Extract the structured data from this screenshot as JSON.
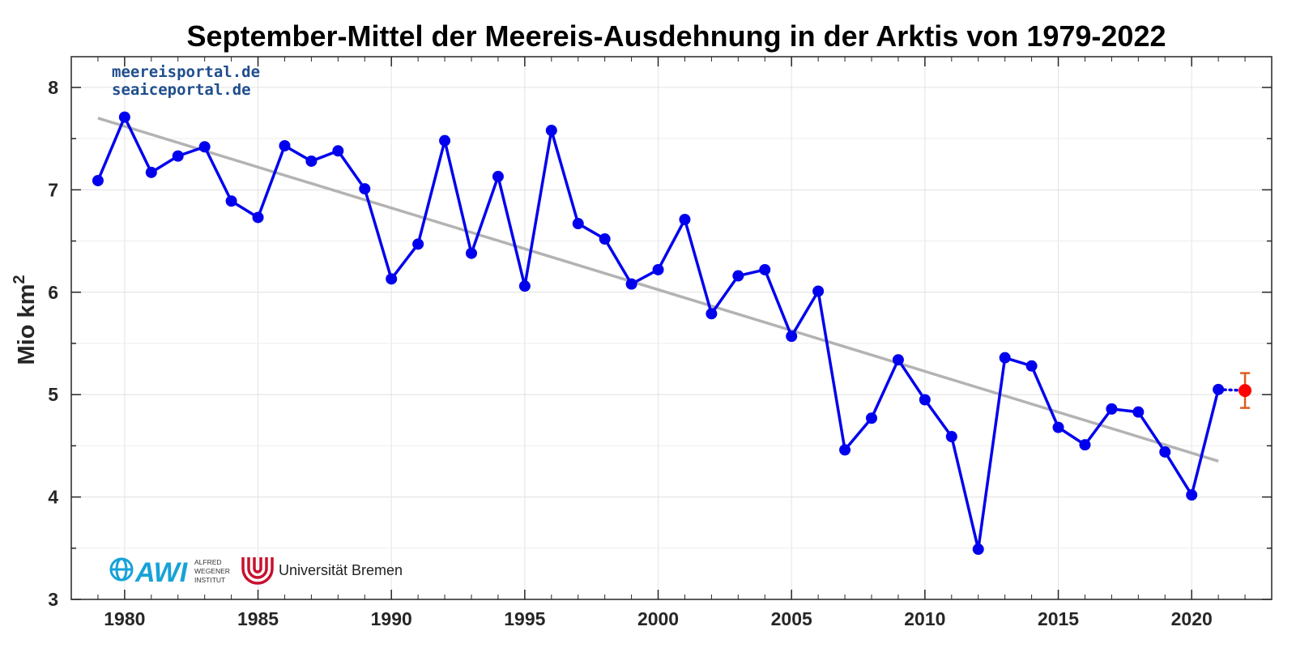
{
  "chart_data": {
    "type": "line",
    "title": "September-Mittel der Meereis-Ausdehnung in der Arktis von 1979-2022",
    "ylabel_main": "Mio km",
    "ylabel_sup": "2",
    "xlim": [
      1978,
      2023
    ],
    "ylim": [
      3,
      8.3
    ],
    "x_ticks": [
      1980,
      1985,
      1990,
      1995,
      2000,
      2005,
      2010,
      2015,
      2020
    ],
    "y_ticks": [
      3,
      4,
      5,
      6,
      7,
      8
    ],
    "grid": true,
    "series": [
      {
        "color": "#0000ee",
        "marker": "circle",
        "x": [
          1979,
          1980,
          1981,
          1982,
          1983,
          1984,
          1985,
          1986,
          1987,
          1988,
          1989,
          1990,
          1991,
          1992,
          1993,
          1994,
          1995,
          1996,
          1997,
          1998,
          1999,
          2000,
          2001,
          2002,
          2003,
          2004,
          2005,
          2006,
          2007,
          2008,
          2009,
          2010,
          2011,
          2012,
          2013,
          2014,
          2015,
          2016,
          2017,
          2018,
          2019,
          2020,
          2021
        ],
        "y": [
          7.09,
          7.71,
          7.17,
          7.33,
          7.42,
          6.89,
          6.73,
          7.43,
          7.28,
          7.38,
          7.01,
          6.13,
          6.47,
          7.48,
          6.38,
          7.13,
          6.06,
          7.58,
          6.67,
          6.52,
          6.08,
          6.22,
          6.71,
          5.79,
          6.16,
          6.22,
          5.57,
          6.01,
          4.46,
          4.77,
          5.34,
          4.95,
          4.59,
          3.49,
          5.36,
          5.28,
          4.68,
          4.51,
          4.86,
          4.83,
          4.44,
          4.02,
          5.05
        ]
      }
    ],
    "trend": {
      "color": "#b3b3b3",
      "x": [
        1979,
        2021
      ],
      "y": [
        7.7,
        4.35
      ]
    },
    "estimate": {
      "color": "#ff0000",
      "error_color": "#e05a1a",
      "x": 2022,
      "y": 5.04,
      "y_low": 4.87,
      "y_high": 5.21,
      "connector_from": [
        2021,
        5.05
      ]
    }
  },
  "branding": {
    "portal_line1": "meereisportal.de",
    "portal_line2": "seaiceportal.de",
    "awi_wordmark": "AWI",
    "awi_line1": "ALFRED",
    "awi_line2": "WEGENER",
    "awi_line3": "INSTITUT",
    "uni_name": "Universität Bremen",
    "awi_color": "#17a2d8",
    "uni_color": "#c8102e"
  }
}
